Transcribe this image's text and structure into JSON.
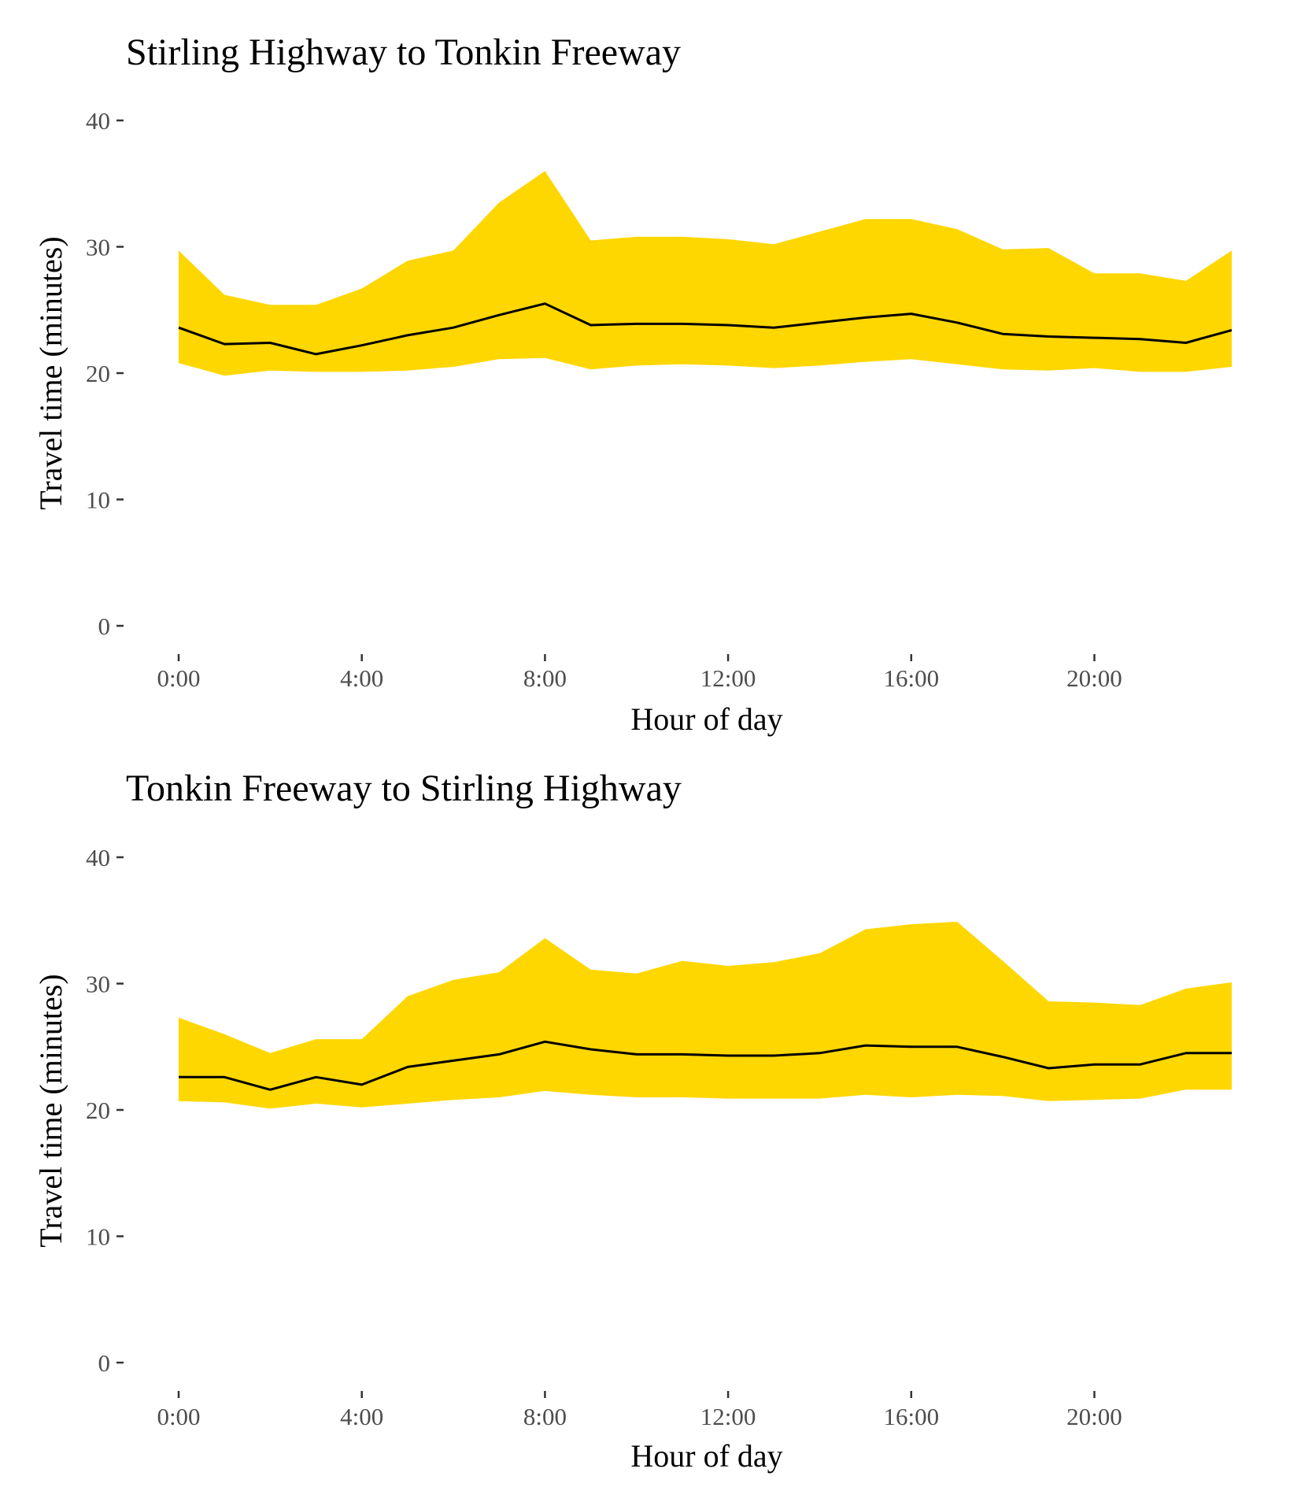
{
  "chart_data": [
    {
      "type": "area",
      "title": "Stirling Highway to Tonkin Freeway",
      "xlabel": "Hour of day",
      "ylabel": "Travel time (minutes)",
      "xlim": [
        0,
        23
      ],
      "ylim": [
        0,
        40
      ],
      "grid": false,
      "x_ticks": [
        {
          "value": 0,
          "label": "0:00"
        },
        {
          "value": 4,
          "label": "4:00"
        },
        {
          "value": 8,
          "label": "8:00"
        },
        {
          "value": 12,
          "label": "12:00"
        },
        {
          "value": 16,
          "label": "16:00"
        },
        {
          "value": 20,
          "label": "20:00"
        }
      ],
      "y_ticks": [
        {
          "value": 0,
          "label": "0"
        },
        {
          "value": 10,
          "label": "10"
        },
        {
          "value": 20,
          "label": "20"
        },
        {
          "value": 30,
          "label": "30"
        },
        {
          "value": 40,
          "label": "40"
        }
      ],
      "x": [
        0,
        1,
        2,
        3,
        4,
        5,
        6,
        7,
        8,
        9,
        10,
        11,
        12,
        13,
        14,
        15,
        16,
        17,
        18,
        19,
        20,
        21,
        22,
        23
      ],
      "band": {
        "color": "#FFD700",
        "upper": [
          29.7,
          26.2,
          25.4,
          25.4,
          26.7,
          28.9,
          29.7,
          33.5,
          36.0,
          30.5,
          30.8,
          30.8,
          30.6,
          30.2,
          31.2,
          32.2,
          32.2,
          31.4,
          29.8,
          29.9,
          27.9,
          27.9,
          27.3,
          29.7
        ],
        "lower": [
          20.8,
          19.8,
          20.2,
          20.1,
          20.1,
          20.2,
          20.5,
          21.1,
          21.2,
          20.3,
          20.6,
          20.7,
          20.6,
          20.4,
          20.6,
          20.9,
          21.1,
          20.7,
          20.3,
          20.2,
          20.4,
          20.1,
          20.1,
          20.5
        ]
      },
      "line": {
        "color": "#000000",
        "values": [
          23.6,
          22.3,
          22.4,
          21.5,
          22.2,
          23.0,
          23.6,
          24.6,
          25.5,
          23.8,
          23.9,
          23.9,
          23.8,
          23.6,
          24.0,
          24.4,
          24.7,
          24.0,
          23.1,
          22.9,
          22.8,
          22.7,
          22.4,
          23.4
        ]
      }
    },
    {
      "type": "area",
      "title": "Tonkin Freeway to Stirling Highway",
      "xlabel": "Hour of day",
      "ylabel": "Travel time (minutes)",
      "xlim": [
        0,
        23
      ],
      "ylim": [
        0,
        40
      ],
      "grid": false,
      "x_ticks": [
        {
          "value": 0,
          "label": "0:00"
        },
        {
          "value": 4,
          "label": "4:00"
        },
        {
          "value": 8,
          "label": "8:00"
        },
        {
          "value": 12,
          "label": "12:00"
        },
        {
          "value": 16,
          "label": "16:00"
        },
        {
          "value": 20,
          "label": "20:00"
        }
      ],
      "y_ticks": [
        {
          "value": 0,
          "label": "0"
        },
        {
          "value": 10,
          "label": "10"
        },
        {
          "value": 20,
          "label": "20"
        },
        {
          "value": 30,
          "label": "30"
        },
        {
          "value": 40,
          "label": "40"
        }
      ],
      "x": [
        0,
        1,
        2,
        3,
        4,
        5,
        6,
        7,
        8,
        9,
        10,
        11,
        12,
        13,
        14,
        15,
        16,
        17,
        18,
        19,
        20,
        21,
        22,
        23
      ],
      "band": {
        "color": "#FFD700",
        "upper": [
          27.3,
          26.0,
          24.5,
          25.6,
          25.6,
          29.0,
          30.3,
          30.9,
          33.6,
          31.1,
          30.8,
          31.8,
          31.4,
          31.7,
          32.4,
          34.3,
          34.7,
          34.9,
          31.8,
          28.6,
          28.5,
          28.3,
          29.6,
          30.1
        ],
        "lower": [
          20.7,
          20.6,
          20.1,
          20.5,
          20.2,
          20.5,
          20.8,
          21.0,
          21.5,
          21.2,
          21.0,
          21.0,
          20.9,
          20.9,
          20.9,
          21.2,
          21.0,
          21.2,
          21.1,
          20.7,
          20.8,
          20.9,
          21.6,
          21.6
        ]
      },
      "line": {
        "color": "#000000",
        "values": [
          22.6,
          22.6,
          21.6,
          22.6,
          22.0,
          23.4,
          23.9,
          24.4,
          25.4,
          24.8,
          24.4,
          24.4,
          24.3,
          24.3,
          24.5,
          25.1,
          25.0,
          25.0,
          24.2,
          23.3,
          23.6,
          23.6,
          24.5,
          24.5
        ]
      }
    }
  ]
}
